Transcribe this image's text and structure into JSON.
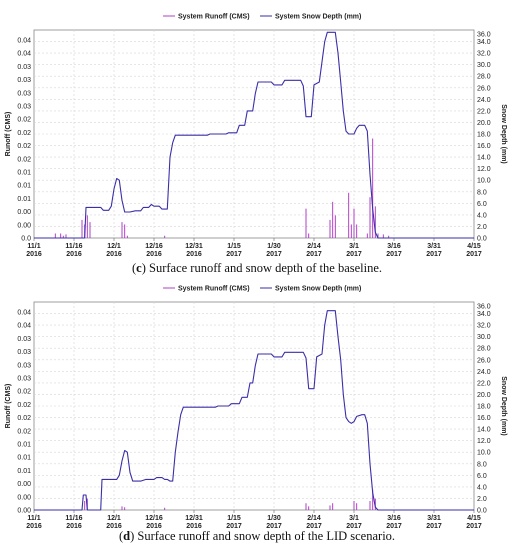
{
  "chart_data": [
    {
      "type": "line",
      "caption_letter": "c",
      "caption_text": "Surface runoff and snow depth of the baseline.",
      "legend": [
        "System Runoff (CMS)",
        "System Snow Depth (mm)"
      ],
      "ylabel_left": "Runoff (CMS)",
      "ylabel_right": "Snow Depth (mm)",
      "y_left_ticks": [
        "0.04",
        "0.04",
        "0.03",
        "0.03",
        "0.03",
        "0.03",
        "0.02",
        "0.02",
        "0.02",
        "0.02",
        "0.01",
        "0.01",
        "0.01",
        "0.00",
        "0.00",
        "0.0"
      ],
      "y_right_ticks": [
        "36.0",
        "34.0",
        "32.0",
        "30.0",
        "28.0",
        "26.0",
        "24.0",
        "22.0",
        "20.0",
        "18.0",
        "16.0",
        "14.0",
        "12.0",
        "10.0",
        "8.0",
        "6.0",
        "4.0",
        "2.0",
        "0.0"
      ],
      "ylim_left": [
        0,
        0.046
      ],
      "ylim_right": [
        0,
        36
      ],
      "x_ticks": [
        [
          "11/1",
          "2016"
        ],
        [
          "11/16",
          "2016"
        ],
        [
          "12/1",
          "2016"
        ],
        [
          "12/16",
          "2016"
        ],
        [
          "12/31",
          "2016"
        ],
        [
          "1/15",
          "2017"
        ],
        [
          "1/30",
          "2017"
        ],
        [
          "2/14",
          "2017"
        ],
        [
          "3/1",
          "2017"
        ],
        [
          "3/16",
          "2017"
        ],
        [
          "3/31",
          "2017"
        ],
        [
          "4/15",
          "2017"
        ]
      ],
      "xlim_days": [
        0,
        165
      ],
      "colors": {
        "runoff": "#b040c8",
        "snow": "#3a2fa8"
      },
      "snow_depth": [
        [
          0,
          0
        ],
        [
          12,
          0
        ],
        [
          14,
          0
        ],
        [
          19,
          0
        ],
        [
          19.5,
          5.3
        ],
        [
          25,
          5.3
        ],
        [
          26,
          4.8
        ],
        [
          28,
          4.8
        ],
        [
          29,
          5.5
        ],
        [
          30,
          8.5
        ],
        [
          31,
          10.3
        ],
        [
          32,
          10.0
        ],
        [
          33,
          6.5
        ],
        [
          34,
          4.5
        ],
        [
          36,
          4.5
        ],
        [
          38,
          4.7
        ],
        [
          40,
          4.7
        ],
        [
          41,
          5.3
        ],
        [
          43,
          5.3
        ],
        [
          44,
          5.8
        ],
        [
          45,
          5.5
        ],
        [
          47,
          5.5
        ],
        [
          48,
          5.0
        ],
        [
          50,
          5.0
        ],
        [
          51,
          14.0
        ],
        [
          52,
          16.5
        ],
        [
          53,
          17.8
        ],
        [
          55,
          17.8
        ],
        [
          58,
          17.8
        ],
        [
          65,
          17.8
        ],
        [
          66,
          18.0
        ],
        [
          72,
          18.0
        ],
        [
          73,
          18.2
        ],
        [
          76,
          18.2
        ],
        [
          77,
          19.5
        ],
        [
          79,
          19.5
        ],
        [
          80,
          22.0
        ],
        [
          82,
          22.0
        ],
        [
          83,
          25.0
        ],
        [
          84,
          27.0
        ],
        [
          89,
          27.0
        ],
        [
          90,
          26.5
        ],
        [
          93,
          26.5
        ],
        [
          94,
          27.3
        ],
        [
          100,
          27.3
        ],
        [
          101,
          26.3
        ],
        [
          102,
          21.0
        ],
        [
          104,
          21.0
        ],
        [
          105,
          26.5
        ],
        [
          107,
          27.0
        ],
        [
          109,
          34.0
        ],
        [
          110,
          35.6
        ],
        [
          113,
          35.6
        ],
        [
          114,
          32.0
        ],
        [
          115,
          27.0
        ],
        [
          116,
          22.0
        ],
        [
          117,
          18.5
        ],
        [
          118,
          18.0
        ],
        [
          120,
          18.0
        ],
        [
          121,
          19.0
        ],
        [
          122,
          19.5
        ],
        [
          124,
          19.5
        ],
        [
          125,
          18.5
        ],
        [
          126,
          11.0
        ],
        [
          127,
          5.0
        ],
        [
          128,
          1.0
        ],
        [
          129,
          0
        ],
        [
          165,
          0
        ]
      ],
      "runoff_spikes": [
        [
          8,
          0.001
        ],
        [
          10,
          0.001
        ],
        [
          11,
          0.0005
        ],
        [
          12,
          0.0008
        ],
        [
          18,
          0.004
        ],
        [
          19,
          0.003
        ],
        [
          20,
          0.005
        ],
        [
          21,
          0.0035
        ],
        [
          33,
          0.0035
        ],
        [
          34,
          0.003
        ],
        [
          35,
          0.0005
        ],
        [
          49,
          0.0005
        ],
        [
          102,
          0.0065
        ],
        [
          103,
          0.001
        ],
        [
          111,
          0.004
        ],
        [
          112,
          0.008
        ],
        [
          113,
          0.005
        ],
        [
          118,
          0.01
        ],
        [
          119,
          0.003
        ],
        [
          120,
          0.0065
        ],
        [
          121,
          0.003
        ],
        [
          125,
          0.001
        ],
        [
          126,
          0.009
        ],
        [
          127,
          0.022
        ],
        [
          128,
          0.007
        ],
        [
          129,
          0.001
        ],
        [
          131,
          0.0008
        ],
        [
          133,
          0.0005
        ]
      ]
    },
    {
      "type": "line",
      "caption_letter": "d",
      "caption_text": "Surface runoff and snow depth of the LID scenario.",
      "legend": [
        "System Runoff (CMS)",
        "System Snow Depth (mm)"
      ],
      "ylabel_left": "Runoff (CMS)",
      "ylabel_right": "Snow Depth (mm)",
      "y_left_ticks": [
        "0.04",
        "0.04",
        "0.03",
        "0.03",
        "0.03",
        "0.03",
        "0.02",
        "0.02",
        "0.02",
        "0.02",
        "0.01",
        "0.01",
        "0.01",
        "0.00",
        "0.00",
        "0.00"
      ],
      "y_right_ticks": [
        "36.0",
        "34.0",
        "32.0",
        "30.0",
        "28.0",
        "26.0",
        "24.0",
        "22.0",
        "20.0",
        "18.0",
        "16.0",
        "14.0",
        "12.0",
        "10.0",
        "8.0",
        "6.0",
        "4.0",
        "2.0",
        "0.0"
      ],
      "ylim_left": [
        0,
        0.046
      ],
      "ylim_right": [
        0,
        36
      ],
      "x_ticks": [
        [
          "11/1",
          "2016"
        ],
        [
          "11/16",
          "2016"
        ],
        [
          "12/1",
          "2016"
        ],
        [
          "12/16",
          "2016"
        ],
        [
          "12/31",
          "2016"
        ],
        [
          "1/15",
          "2017"
        ],
        [
          "1/30",
          "2017"
        ],
        [
          "2/14",
          "2017"
        ],
        [
          "3/1",
          "2017"
        ],
        [
          "3/16",
          "2017"
        ],
        [
          "3/31",
          "2017"
        ],
        [
          "4/15",
          "2017"
        ]
      ],
      "xlim_days": [
        0,
        165
      ],
      "colors": {
        "runoff": "#b040c8",
        "snow": "#3a2fa8"
      },
      "snow_depth": [
        [
          0,
          0
        ],
        [
          12,
          0
        ],
        [
          14,
          0
        ],
        [
          18,
          0
        ],
        [
          18.5,
          2.6
        ],
        [
          19.5,
          2.6
        ],
        [
          20,
          0
        ],
        [
          25,
          0
        ],
        [
          25.5,
          5.3
        ],
        [
          31,
          5.3
        ],
        [
          32,
          6.0
        ],
        [
          33,
          8.5
        ],
        [
          34,
          10.3
        ],
        [
          35,
          10.0
        ],
        [
          36,
          6.5
        ],
        [
          37,
          5.0
        ],
        [
          40,
          5.0
        ],
        [
          42,
          5.3
        ],
        [
          45,
          5.3
        ],
        [
          46,
          5.6
        ],
        [
          48,
          5.6
        ],
        [
          49,
          5.3
        ],
        [
          50,
          5.3
        ],
        [
          51,
          5.0
        ],
        [
          52,
          5.0
        ],
        [
          53,
          10.0
        ],
        [
          54,
          13.5
        ],
        [
          55,
          16.5
        ],
        [
          56,
          17.8
        ],
        [
          60,
          17.8
        ],
        [
          68,
          17.8
        ],
        [
          69,
          18.0
        ],
        [
          73,
          18.0
        ],
        [
          74,
          18.4
        ],
        [
          77,
          18.4
        ],
        [
          78,
          19.5
        ],
        [
          80,
          19.5
        ],
        [
          81,
          22.0
        ],
        [
          82,
          22.0
        ],
        [
          83,
          25.0
        ],
        [
          84,
          27.0
        ],
        [
          89,
          27.0
        ],
        [
          90,
          26.5
        ],
        [
          93,
          26.5
        ],
        [
          94,
          27.3
        ],
        [
          101,
          27.3
        ],
        [
          102,
          26.3
        ],
        [
          103,
          21.0
        ],
        [
          105,
          21.0
        ],
        [
          106,
          26.5
        ],
        [
          108,
          27.0
        ],
        [
          109,
          32.0
        ],
        [
          110,
          34.5
        ],
        [
          113,
          34.5
        ],
        [
          114,
          30.0
        ],
        [
          115,
          26.0
        ],
        [
          116,
          20.0
        ],
        [
          117,
          16.0
        ],
        [
          118,
          15.3
        ],
        [
          119,
          15.0
        ],
        [
          120,
          15.3
        ],
        [
          121,
          16.2
        ],
        [
          123,
          16.5
        ],
        [
          124,
          16.5
        ],
        [
          125,
          15.0
        ],
        [
          126,
          8.0
        ],
        [
          127,
          3.0
        ],
        [
          128,
          0.5
        ],
        [
          129,
          0
        ],
        [
          165,
          0
        ]
      ],
      "runoff_spikes": [
        [
          19,
          0.002
        ],
        [
          20,
          0.0025
        ],
        [
          33,
          0.0008
        ],
        [
          34,
          0.0006
        ],
        [
          49,
          0.0005
        ],
        [
          102,
          0.0015
        ],
        [
          103,
          0.0008
        ],
        [
          111,
          0.001
        ],
        [
          112,
          0.0015
        ],
        [
          120,
          0.002
        ],
        [
          121,
          0.0015
        ],
        [
          126,
          0.002
        ],
        [
          127,
          0.0045
        ],
        [
          128,
          0.0025
        ]
      ]
    }
  ]
}
